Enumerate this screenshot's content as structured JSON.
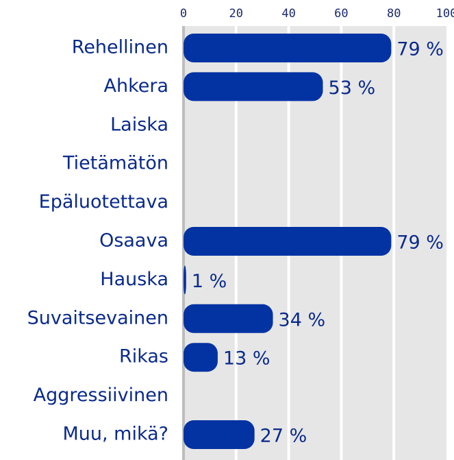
{
  "chart_data": {
    "type": "bar",
    "orientation": "horizontal",
    "categories": [
      "Rehellinen",
      "Ahkera",
      "Laiska",
      "Tietämätön",
      "Epäluotettava",
      "Osaava",
      "Hauska",
      "Suvaitsevainen",
      "Rikas",
      "Aggressiivinen",
      "Muu, mikä?"
    ],
    "values": [
      79,
      53,
      0,
      0,
      0,
      79,
      1,
      34,
      13,
      0,
      27
    ],
    "value_labels": [
      "79 %",
      "53 %",
      null,
      null,
      null,
      "79 %",
      "1 %",
      "34 %",
      "13 %",
      null,
      "27 %"
    ],
    "color": "#0333a3",
    "xlim": [
      0,
      100
    ],
    "xticks": [
      0,
      20,
      40,
      60,
      80,
      100
    ],
    "grid": true
  }
}
